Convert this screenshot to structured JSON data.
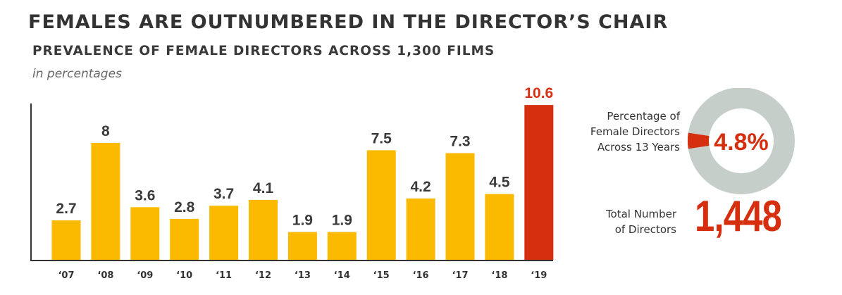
{
  "header": {
    "title": "FEMALES ARE OUTNUMBERED IN THE DIRECTOR’S CHAIR",
    "subtitle": "PREVALENCE OF FEMALE DIRECTORS ACROSS 1,300 FILMS",
    "units": "in percentages"
  },
  "colors": {
    "bar": "#fbb900",
    "highlight": "#d62f10",
    "donut_track": "#c5cec9",
    "axis": "#333333"
  },
  "chart_data": {
    "type": "bar",
    "categories": [
      "‘07",
      "‘08",
      "‘09",
      "‘10",
      "‘11",
      "‘12",
      "‘13",
      "‘14",
      "‘15",
      "‘16",
      "‘17",
      "‘18",
      "‘19"
    ],
    "values": [
      2.7,
      8,
      3.6,
      2.8,
      3.7,
      4.1,
      1.9,
      1.9,
      7.5,
      4.2,
      7.3,
      4.5,
      10.6
    ],
    "value_labels": [
      "2.7",
      "8",
      "3.6",
      "2.8",
      "3.7",
      "4.1",
      "1.9",
      "1.9",
      "7.5",
      "4.2",
      "7.3",
      "4.5",
      "10.6"
    ],
    "highlight_index": 12,
    "ylim": [
      0,
      12
    ],
    "grid": false,
    "xlabel": "",
    "ylabel": ""
  },
  "summary": {
    "share_caption_lines": [
      "Percentage of",
      "Female Directors",
      "Across 13 Years"
    ],
    "share_value": 4.8,
    "share_text": "4.8%",
    "total_caption_lines": [
      "Total Number",
      "of Directors"
    ],
    "total_text": "1,448"
  }
}
